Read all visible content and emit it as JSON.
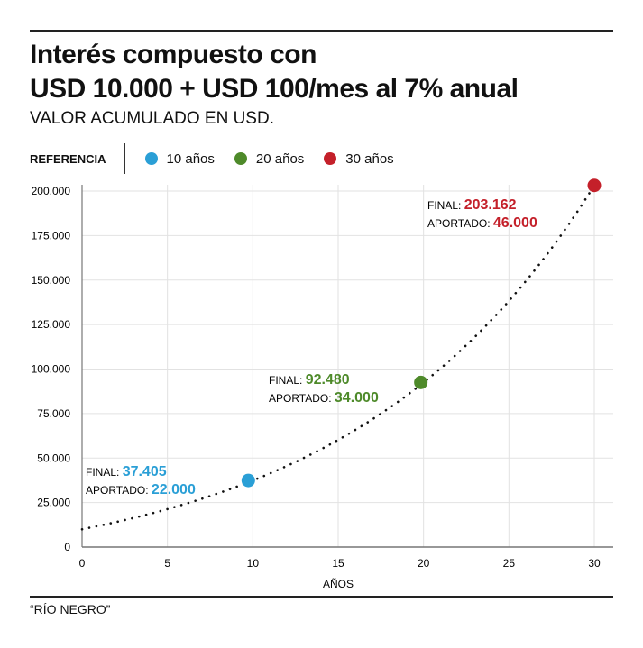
{
  "title_line1": "Interés compuesto con",
  "title_line2": "USD 10.000 + USD 100/mes al 7% anual",
  "subtitle": "VALOR ACUMULADO EN USD.",
  "legend": {
    "label": "REFERENCIA",
    "items": [
      {
        "label": "10 años",
        "color": "#2a9fd6"
      },
      {
        "label": "20 años",
        "color": "#4e8a2a"
      },
      {
        "label": "30 años",
        "color": "#c4202a"
      }
    ]
  },
  "source": "“RÍO NEGRO”",
  "chart_data": {
    "type": "line",
    "title": "Interés compuesto con USD 10.000 + USD 100/mes al 7% anual",
    "xlabel": "AÑOS",
    "ylabel": "VALOR ACUMULADO EN USD.",
    "xlim": [
      0,
      30
    ],
    "ylim": [
      0,
      200000
    ],
    "xticks": [
      "0",
      "5",
      "10",
      "15",
      "20",
      "25",
      "30"
    ],
    "xtick_values": [
      0,
      5,
      10,
      15,
      20,
      25,
      30
    ],
    "yticks": [
      "0",
      "25.000",
      "50.000",
      "75.000",
      "100.000",
      "125.000",
      "150.000",
      "175.000",
      "200.000"
    ],
    "ytick_values": [
      0,
      25000,
      50000,
      75000,
      100000,
      125000,
      150000,
      175000,
      200000
    ],
    "grid": true,
    "curve": {
      "principal": 10000,
      "monthly": 100,
      "annual_rate": 0.07,
      "style": "dotted"
    },
    "points": [
      {
        "x": 10,
        "y": 37405,
        "color": "#2a9fd6",
        "final_label": "FINAL:",
        "final": "37.405",
        "contrib_label": "APORTADO:",
        "contrib": "22.000"
      },
      {
        "x": 20,
        "y": 92480,
        "color": "#4e8a2a",
        "final_label": "FINAL:",
        "final": "92.480",
        "contrib_label": "APORTADO:",
        "contrib": "34.000"
      },
      {
        "x": 30,
        "y": 203162,
        "color": "#c4202a",
        "final_label": "FINAL:",
        "final": "203.162",
        "contrib_label": "APORTADO:",
        "contrib": "46.000"
      }
    ]
  }
}
